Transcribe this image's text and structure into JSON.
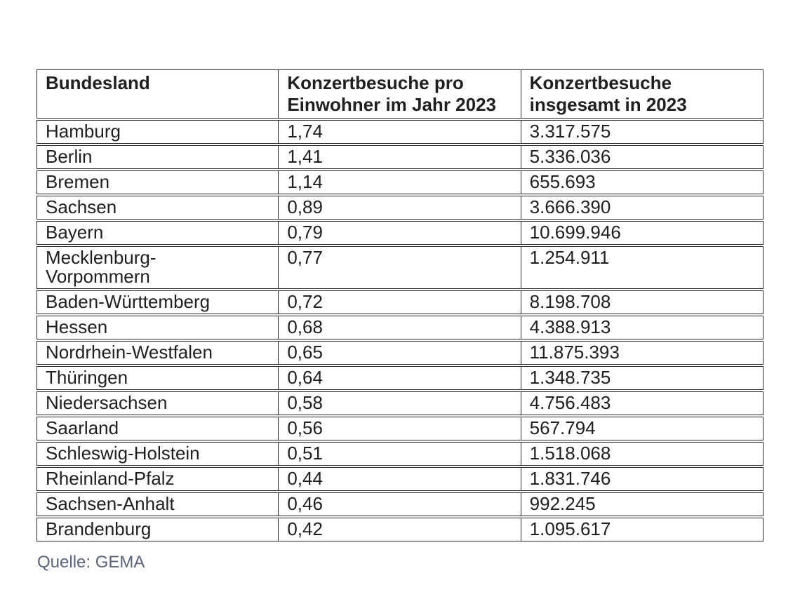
{
  "table": {
    "header": {
      "col1": "Bundesland",
      "col2": "Konzertbesuche pro\nEinwohner im Jahr 2023",
      "col3": "Konzertbesuche\ninsgesamt in 2023"
    },
    "rows": [
      [
        "Hamburg",
        "1,74",
        "3.317.575"
      ],
      [
        "Berlin",
        "1,41",
        "5.336.036"
      ],
      [
        "Bremen",
        "1,14",
        "655.693"
      ],
      [
        "Sachsen",
        "0,89",
        "3.666.390"
      ],
      [
        "Bayern",
        "0,79",
        "10.699.946"
      ],
      [
        "Mecklenburg-\nVorpommern",
        "0,77",
        "1.254.911"
      ],
      [
        "Baden-Württemberg",
        "0,72",
        "8.198.708"
      ],
      [
        "Hessen",
        "0,68",
        "4.388.913"
      ],
      [
        "Nordrhein-Westfalen",
        "0,65",
        "11.875.393"
      ],
      [
        "Thüringen",
        "0,64",
        "1.348.735"
      ],
      [
        "Niedersachsen",
        "0,58",
        "4.756.483"
      ],
      [
        "Saarland",
        "0,56",
        "567.794"
      ],
      [
        "Schleswig-Holstein",
        "0,51",
        "1.518.068"
      ],
      [
        "Rheinland-Pfalz",
        "0,44",
        "1.831.746"
      ],
      [
        "Sachsen-Anhalt",
        "0,46",
        "992.245"
      ],
      [
        "Brandenburg",
        "0,42",
        "1.095.617"
      ]
    ]
  },
  "source": {
    "label": "Quelle: GEMA"
  },
  "colors": {
    "text": "#1f1f1f",
    "border": "#2b2b2b",
    "source_text": "#5b6478",
    "background": "#ffffff"
  },
  "chart_data": {
    "type": "table",
    "title": "",
    "columns": [
      "Bundesland",
      "Konzertbesuche pro Einwohner im Jahr 2023",
      "Konzertbesuche insgesamt in 2023"
    ],
    "rows": [
      [
        "Hamburg",
        "1,74",
        "3.317.575"
      ],
      [
        "Berlin",
        "1,41",
        "5.336.036"
      ],
      [
        "Bremen",
        "1,14",
        "655.693"
      ],
      [
        "Sachsen",
        "0,89",
        "3.666.390"
      ],
      [
        "Bayern",
        "0,79",
        "10.699.946"
      ],
      [
        "Mecklenburg-Vorpommern",
        "0,77",
        "1.254.911"
      ],
      [
        "Baden-Württemberg",
        "0,72",
        "8.198.708"
      ],
      [
        "Hessen",
        "0,68",
        "4.388.913"
      ],
      [
        "Nordrhein-Westfalen",
        "0,65",
        "11.875.393"
      ],
      [
        "Thüringen",
        "0,64",
        "1.348.735"
      ],
      [
        "Niedersachsen",
        "0,58",
        "4.756.483"
      ],
      [
        "Saarland",
        "0,56",
        "567.794"
      ],
      [
        "Schleswig-Holstein",
        "0,51",
        "1.518.068"
      ],
      [
        "Rheinland-Pfalz",
        "0,44",
        "1.831.746"
      ],
      [
        "Sachsen-Anhalt",
        "0,46",
        "992.245"
      ],
      [
        "Brandenburg",
        "0,42",
        "1.095.617"
      ]
    ],
    "source": "GEMA"
  }
}
